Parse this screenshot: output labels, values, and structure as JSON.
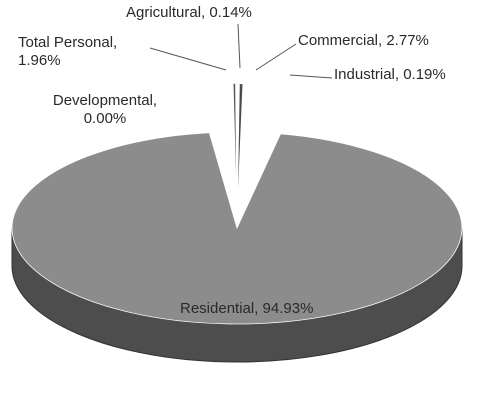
{
  "chart_data": {
    "type": "pie",
    "values": [
      0.14,
      2.77,
      0.19,
      94.93,
      0.0,
      1.96
    ],
    "value_labels": [
      "Agricultural, 0.14%",
      "Commercial, 2.77%",
      "Industrial, 0.19%",
      "Residential, 94.93%",
      "Developmental, 0.00%",
      "Total Personal, 1.96%"
    ],
    "colors": [
      "#3a3a3a",
      "#4a4a4a",
      "#dcdcdc",
      "#8c8c8c",
      "#222222",
      "#5a5a5a"
    ]
  }
}
